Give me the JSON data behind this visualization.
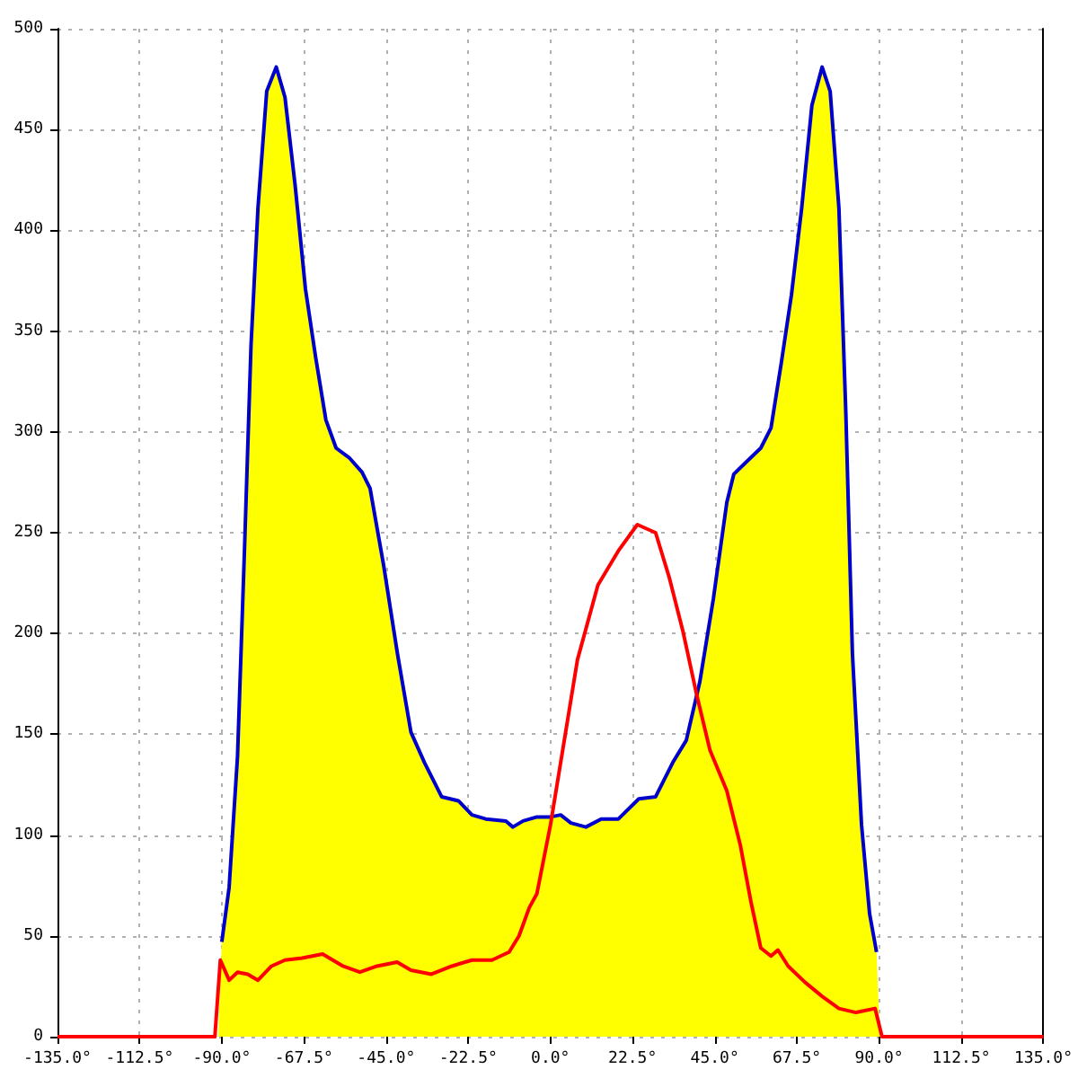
{
  "chart_data": {
    "type": "area",
    "xlim": [
      -135,
      135
    ],
    "ylim": [
      0,
      500
    ],
    "xticks": [
      {
        "value": -135,
        "label": "-135.0°"
      },
      {
        "value": -112.5,
        "label": "-112.5°"
      },
      {
        "value": -90,
        "label": "-90.0°"
      },
      {
        "value": -67.5,
        "label": "-67.5°"
      },
      {
        "value": -45,
        "label": "-45.0°"
      },
      {
        "value": -22.5,
        "label": "-22.5°"
      },
      {
        "value": 0,
        "label": "0.0°"
      },
      {
        "value": 22.5,
        "label": "22.5°"
      },
      {
        "value": 45,
        "label": "45.0°"
      },
      {
        "value": 67.5,
        "label": "67.5°"
      },
      {
        "value": 90,
        "label": "90.0°"
      },
      {
        "value": 112.5,
        "label": "112.5°"
      },
      {
        "value": 135,
        "label": "135.0°"
      }
    ],
    "yticks": [
      0,
      50,
      100,
      150,
      200,
      250,
      300,
      350,
      400,
      450,
      500
    ],
    "grid": true,
    "marker": "none",
    "series": [
      {
        "color": "#ffff00",
        "x": [
          -91,
          -90,
          -88,
          -85.7,
          -83.8,
          -82,
          -80.1,
          -77.7,
          -75.1,
          -72.7,
          -69.9,
          -67.1,
          -64.3,
          -61.5,
          -58.7,
          -55,
          -51.6,
          -49.4,
          -45.7,
          -41.9,
          -38.2,
          -34.5,
          -29.8,
          -25.2,
          -21.5,
          -17.7,
          -12.2,
          -10.3,
          -7.5,
          -3.7,
          0,
          2.8,
          5.6,
          9.7,
          13.9,
          18.6,
          24.2,
          28.8,
          33.5,
          37.2,
          40.9,
          44.6,
          48.3,
          50.2,
          53,
          57.6,
          60.4,
          63.2,
          66,
          68.8,
          71.6,
          74.4,
          76.6,
          79,
          80.9,
          82.7,
          85.2,
          87.4,
          89.3,
          90.2
        ],
        "values": [
          0,
          47,
          74,
          139,
          241,
          343,
          411,
          469,
          481,
          466,
          422,
          371,
          337,
          306,
          292,
          287,
          280,
          272,
          234,
          190,
          151,
          136,
          119,
          117,
          110,
          108,
          107,
          104,
          107,
          109,
          109,
          110,
          106,
          104,
          108,
          108,
          118,
          119,
          136,
          147,
          176,
          217,
          265,
          279,
          284,
          292,
          302,
          334,
          368,
          411,
          462,
          481,
          469,
          411,
          309,
          190,
          105,
          61,
          42,
          0
        ]
      },
      {
        "type": "line",
        "color": "#0000cc",
        "x": [
          -90,
          -88,
          -85.7,
          -83.8,
          -82,
          -80.1,
          -77.7,
          -75.1,
          -72.7,
          -69.9,
          -67.1,
          -64.3,
          -61.5,
          -58.7,
          -55,
          -51.6,
          -49.4,
          -45.7,
          -41.9,
          -38.2,
          -34.5,
          -29.8,
          -25.2,
          -21.5,
          -17.7,
          -12.2,
          -10.3,
          -7.5,
          -3.7,
          0,
          2.8,
          5.6,
          9.7,
          13.9,
          18.6,
          24.2,
          28.8,
          33.5,
          37.2,
          40.9,
          44.6,
          48.3,
          50.2,
          53,
          57.6,
          60.4,
          63.2,
          66,
          68.8,
          71.6,
          74.4,
          76.6,
          79,
          80.9,
          82.7,
          85.2,
          87.4,
          89.3
        ],
        "values": [
          47,
          74,
          139,
          241,
          343,
          411,
          469,
          481,
          466,
          422,
          371,
          337,
          306,
          292,
          287,
          280,
          272,
          234,
          190,
          151,
          136,
          119,
          117,
          110,
          108,
          107,
          104,
          107,
          109,
          109,
          110,
          106,
          104,
          108,
          108,
          118,
          119,
          136,
          147,
          176,
          217,
          265,
          279,
          284,
          292,
          302,
          334,
          368,
          411,
          462,
          481,
          469,
          411,
          309,
          190,
          105,
          61,
          42
        ]
      },
      {
        "type": "line",
        "color": "#ff0000",
        "x": [
          -135,
          -91.9,
          -90.4,
          -88,
          -85.7,
          -82.9,
          -80.1,
          -76.4,
          -72.7,
          -68,
          -62.4,
          -56.8,
          -52.2,
          -47.5,
          -42,
          -38.2,
          -32.6,
          -27,
          -21.5,
          -16,
          -11.3,
          -8.6,
          -5.8,
          -3.7,
          0,
          3.7,
          7.4,
          13,
          18.6,
          23.8,
          28.8,
          32.5,
          36.3,
          40,
          43.7,
          48.3,
          52,
          54.9,
          57.6,
          60.4,
          62.3,
          65.1,
          69.7,
          74.4,
          79,
          83.7,
          88.9,
          90.8,
          135
        ],
        "values": [
          0,
          0,
          38,
          28,
          32,
          31,
          28,
          35,
          38,
          39,
          41,
          35,
          32,
          35,
          37,
          33,
          31,
          35,
          38,
          38,
          42,
          50,
          64,
          71,
          105,
          146,
          187,
          224,
          241,
          254,
          250,
          228,
          201,
          170,
          142,
          122,
          95,
          67,
          44,
          40,
          43,
          35,
          27,
          20,
          14,
          12,
          14,
          0,
          0
        ]
      }
    ]
  }
}
